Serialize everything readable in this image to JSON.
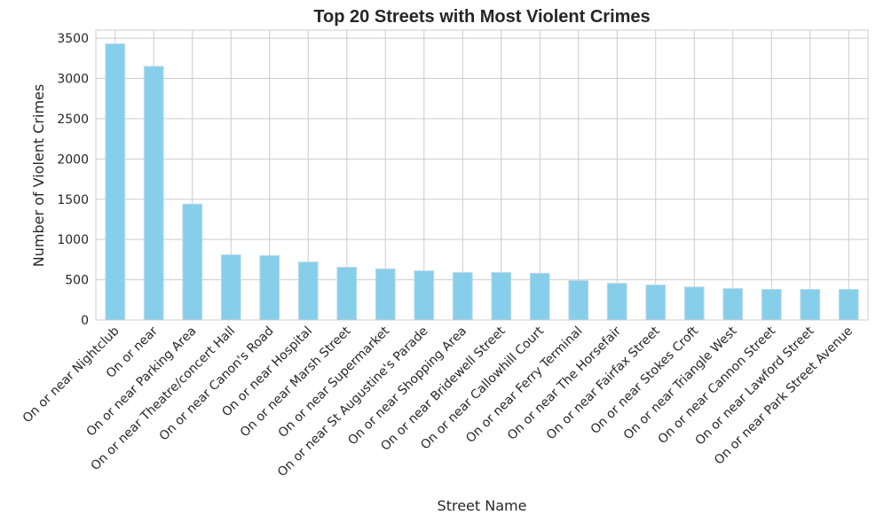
{
  "chart_data": {
    "type": "bar",
    "title": "Top 20 Streets with Most Violent Crimes",
    "xlabel": "Street Name",
    "ylabel": "Number of Violent Crimes",
    "ylim": [
      0,
      3600
    ],
    "yticks": [
      0,
      500,
      1000,
      1500,
      2000,
      2500,
      3000,
      3500
    ],
    "grid": true,
    "bar_color": "#87ceeb",
    "categories": [
      "On or near Nightclub",
      "On or near",
      "On or near Parking Area",
      "On or near Theatre/concert Hall",
      "On or near Canon's Road",
      "On or near Hospital",
      "On or near Marsh Street",
      "On or near Supermarket",
      "On or near St Augustine's Parade",
      "On or near Shopping Area",
      "On or near Bridewell Street",
      "On or near Callowhill Court",
      "On or near Ferry Terminal",
      "On or near The Horsefair",
      "On or near Fairfax Street",
      "On or near Stokes Croft",
      "On or near Triangle West",
      "On or near Cannon Street",
      "On or near Lawford Street",
      "On or near Park Street Avenue"
    ],
    "values": [
      3430,
      3150,
      1440,
      810,
      800,
      720,
      655,
      635,
      610,
      590,
      590,
      580,
      490,
      455,
      435,
      410,
      390,
      380,
      380,
      380
    ]
  }
}
